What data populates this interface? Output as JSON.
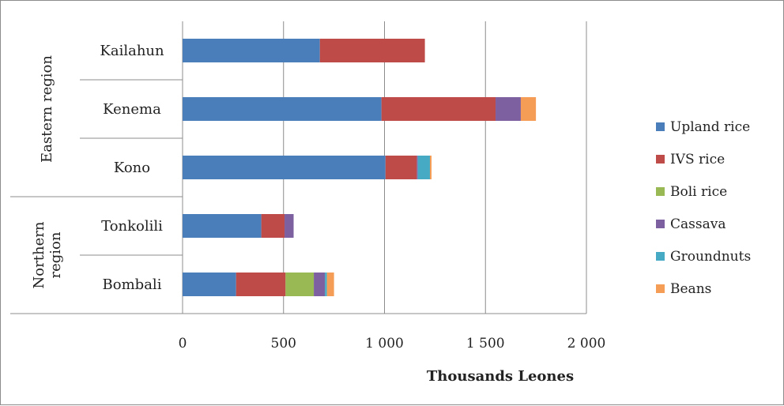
{
  "chart_data": {
    "type": "bar",
    "orientation": "horizontal",
    "stacked": true,
    "xlabel": "Thousands Leones",
    "xlim": [
      0,
      2000
    ],
    "xticks": [
      0,
      500,
      1000,
      1500,
      2000
    ],
    "xtick_labels": [
      "0",
      "500",
      "1 000",
      "1 500",
      "2 000"
    ],
    "grid": "vertical",
    "legend_position": "right",
    "groups": [
      {
        "label": "Eastern region",
        "categories": [
          "Kailahun",
          "Kenema",
          "Kono"
        ]
      },
      {
        "label": "Northern region",
        "categories": [
          "Tonkolili",
          "Bombali"
        ]
      }
    ],
    "categories": [
      "Kailahun",
      "Kenema",
      "Kono",
      "Tonkolili",
      "Bombali"
    ],
    "series": [
      {
        "name": "Upland rice",
        "color": "#4a7ebb",
        "values": [
          680,
          985,
          1005,
          390,
          265
        ]
      },
      {
        "name": "IVS rice",
        "color": "#be4b48",
        "values": [
          520,
          565,
          155,
          115,
          245
        ]
      },
      {
        "name": "Boli rice",
        "color": "#98b954",
        "values": [
          0,
          0,
          0,
          0,
          140
        ]
      },
      {
        "name": "Cassava",
        "color": "#7d60a0",
        "values": [
          0,
          125,
          5,
          45,
          55
        ]
      },
      {
        "name": "Groundnuts",
        "color": "#46aac5",
        "values": [
          0,
          0,
          60,
          0,
          10
        ]
      },
      {
        "name": "Beans",
        "color": "#f59d56",
        "values": [
          0,
          75,
          8,
          0,
          35
        ]
      }
    ]
  }
}
